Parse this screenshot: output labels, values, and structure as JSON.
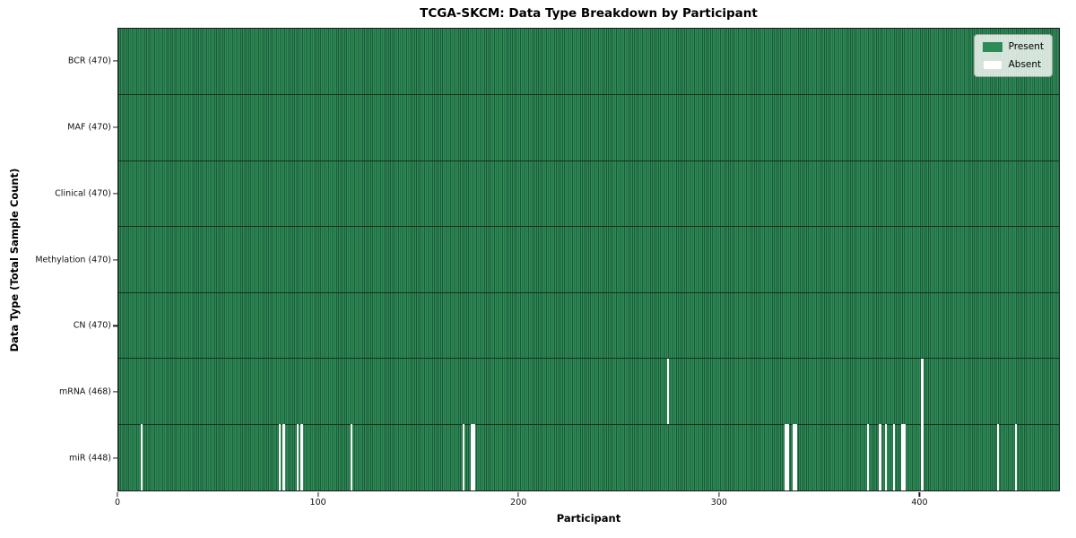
{
  "chart_data": {
    "type": "heatmap",
    "title": "TCGA-SKCM: Data Type Breakdown by Participant",
    "xlabel": "Participant",
    "ylabel": "Data Type (Total Sample Count)",
    "x_ticks": [
      0,
      100,
      200,
      300,
      400
    ],
    "x_range": [
      0,
      470
    ],
    "n_participants": 470,
    "grid": false,
    "legend": {
      "position": "upper right",
      "items": [
        {
          "label": "Present",
          "color": "#2e8b57"
        },
        {
          "label": "Absent",
          "color": "#ffffff"
        }
      ]
    },
    "colors": {
      "present": "#2e8b57",
      "cell_edge": "#1e5838",
      "row_separator": "#13301f",
      "spine": "#1a1a1a",
      "background": "#ffffff"
    },
    "rows": [
      {
        "label": "BCR (470)",
        "data_type": "BCR",
        "present_count": 470,
        "absent_participants": []
      },
      {
        "label": "MAF (470)",
        "data_type": "MAF",
        "present_count": 470,
        "absent_participants": []
      },
      {
        "label": "Clinical (470)",
        "data_type": "Clinical",
        "present_count": 470,
        "absent_participants": []
      },
      {
        "label": "Methylation (470)",
        "data_type": "Methylation",
        "present_count": 470,
        "absent_participants": []
      },
      {
        "label": "CN (470)",
        "data_type": "CN",
        "present_count": 470,
        "absent_participants": []
      },
      {
        "label": "mRNA (468)",
        "data_type": "mRNA",
        "present_count": 468,
        "absent_participants": [
          274,
          401
        ]
      },
      {
        "label": "miR (448)",
        "data_type": "miR",
        "present_count": 448,
        "absent_participants": [
          11,
          80,
          82,
          89,
          91,
          116,
          172,
          176,
          177,
          333,
          334,
          337,
          338,
          374,
          380,
          383,
          387,
          391,
          392,
          401,
          439,
          448
        ]
      }
    ]
  }
}
